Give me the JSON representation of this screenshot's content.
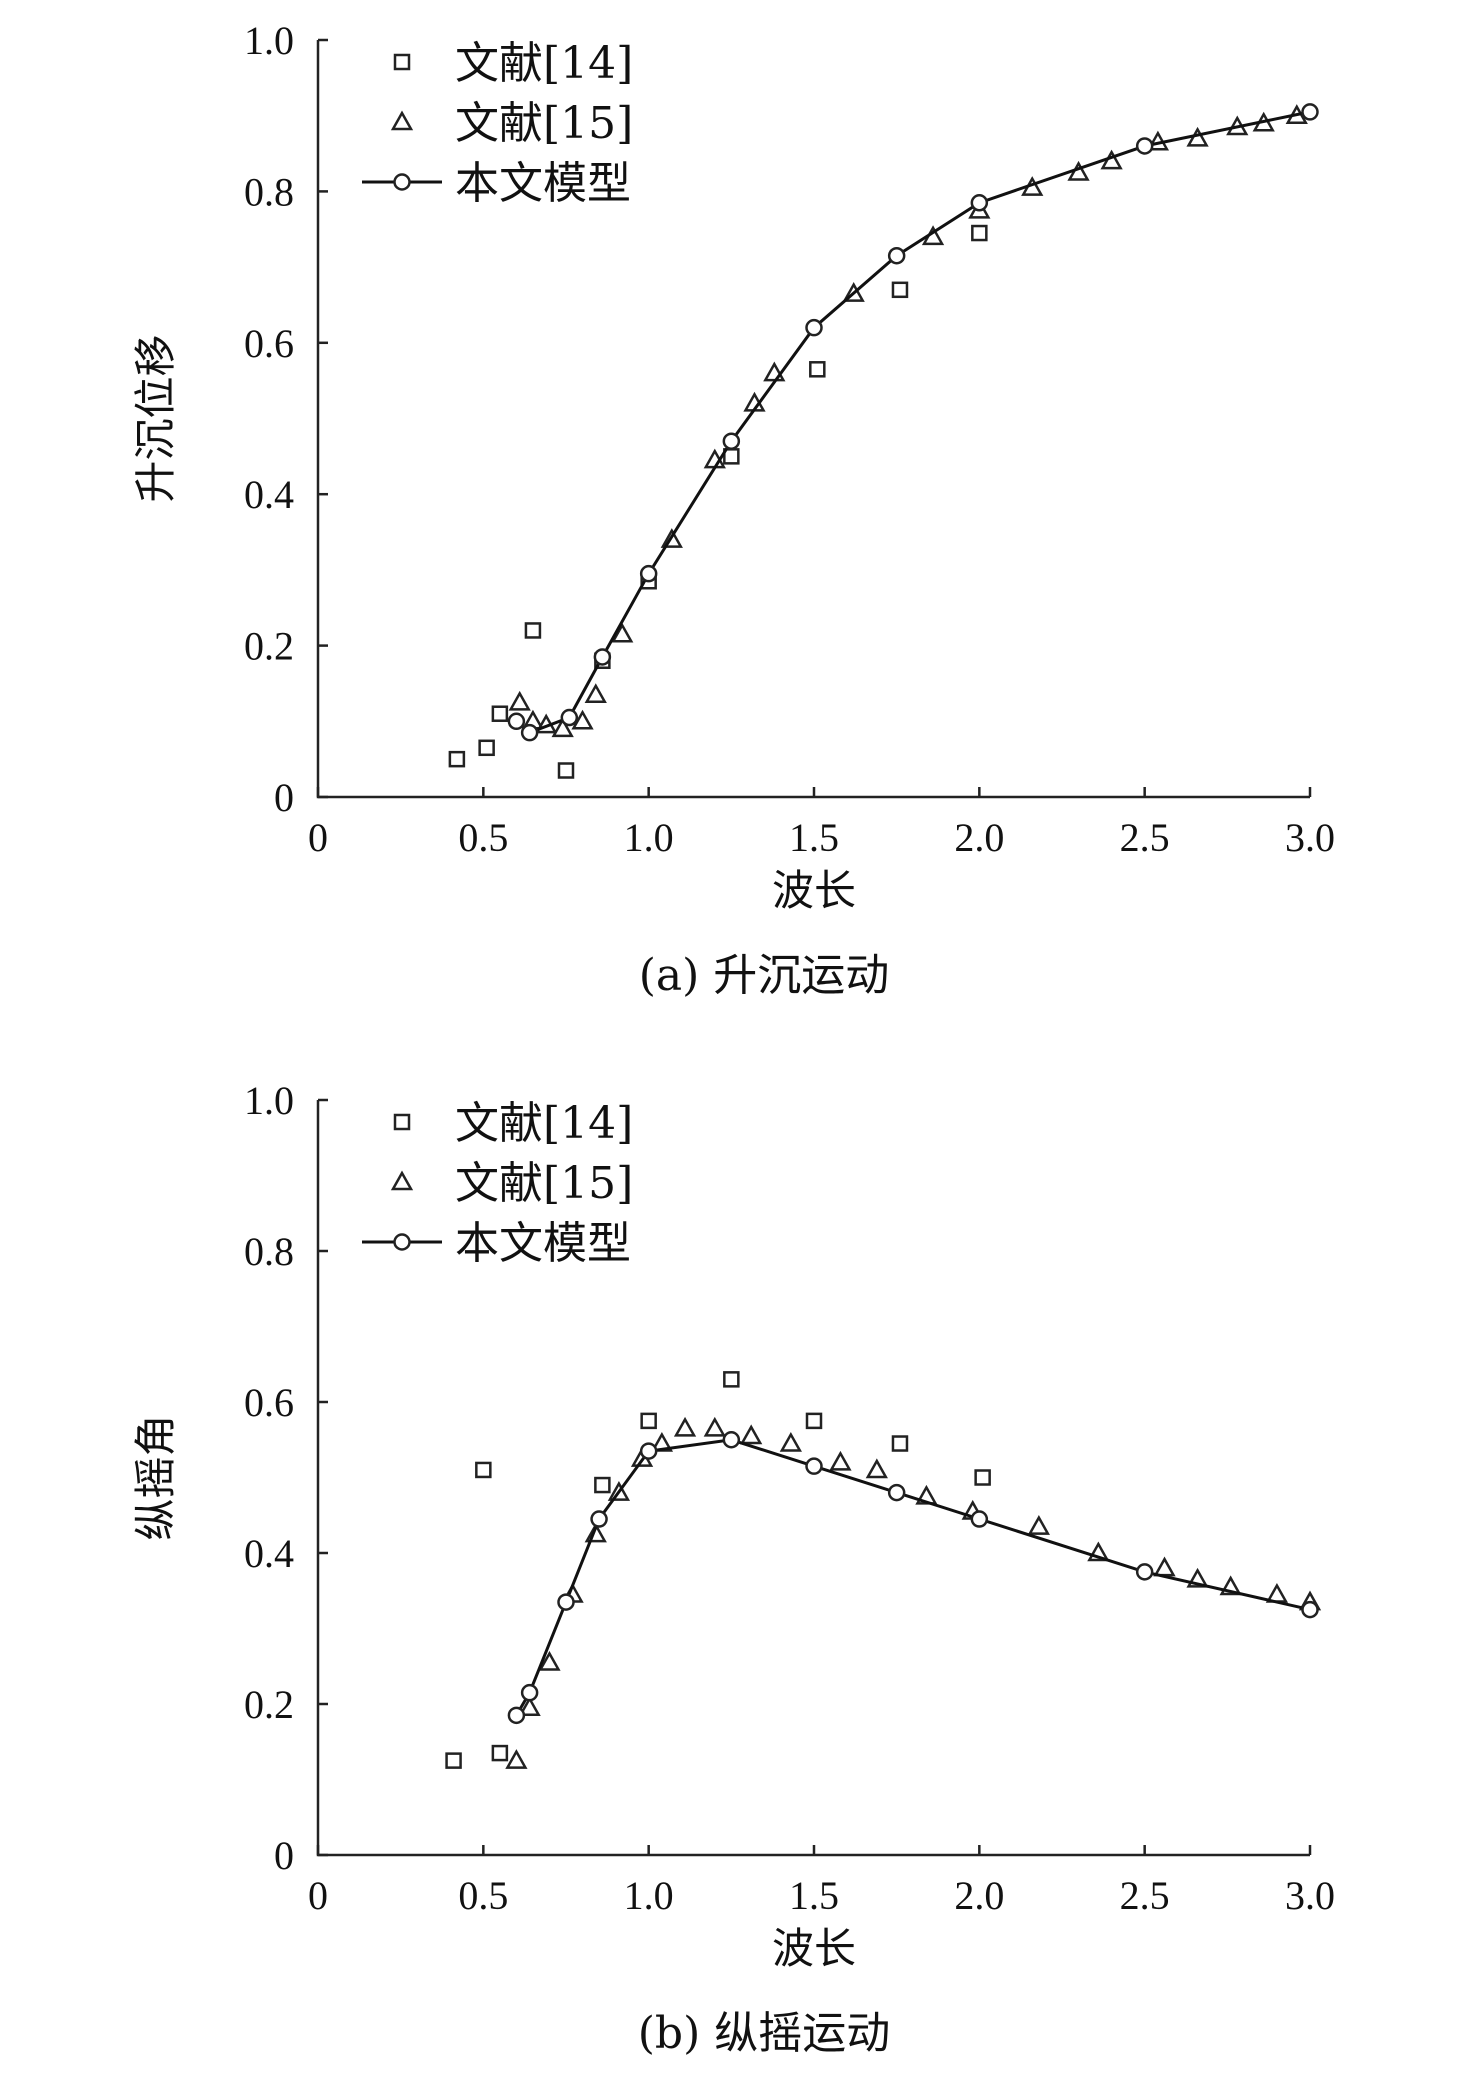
{
  "chart_data": [
    {
      "type": "scatter",
      "panel": "a",
      "caption": "(a) 升沉运动",
      "xlabel": "波长",
      "ylabel": "升沉位移",
      "xlim": [
        0,
        3.0
      ],
      "ylim": [
        0,
        1.0
      ],
      "xticks": [
        0,
        0.5,
        1.0,
        1.5,
        2.0,
        2.5,
        3.0
      ],
      "xtick_labels": [
        "0",
        "0.5",
        "1.0",
        "1.5",
        "2.0",
        "2.5",
        "3.0"
      ],
      "yticks": [
        0,
        0.2,
        0.4,
        0.6,
        0.8,
        1.0
      ],
      "ytick_labels": [
        "0",
        "0.2",
        "0.4",
        "0.6",
        "0.8",
        "1.0"
      ],
      "legend_position": "top-left",
      "series": [
        {
          "name": "文献[14]",
          "marker": "square",
          "x": [
            0.42,
            0.51,
            0.55,
            0.65,
            0.75,
            0.86,
            1.0,
            1.25,
            1.51,
            1.76,
            2.0
          ],
          "y": [
            0.05,
            0.065,
            0.11,
            0.22,
            0.035,
            0.18,
            0.285,
            0.45,
            0.565,
            0.67,
            0.745
          ]
        },
        {
          "name": "文献[15]",
          "marker": "triangle",
          "x": [
            0.61,
            0.65,
            0.69,
            0.74,
            0.8,
            0.84,
            0.92,
            1.07,
            1.2,
            1.32,
            1.38,
            1.62,
            1.86,
            2.0,
            2.16,
            2.3,
            2.4,
            2.54,
            2.66,
            2.78,
            2.86,
            2.96
          ],
          "y": [
            0.125,
            0.1,
            0.095,
            0.09,
            0.1,
            0.135,
            0.215,
            0.34,
            0.445,
            0.52,
            0.56,
            0.665,
            0.74,
            0.775,
            0.805,
            0.825,
            0.84,
            0.865,
            0.87,
            0.885,
            0.89,
            0.9
          ]
        },
        {
          "name": "本文模型",
          "marker": "circle",
          "line": true,
          "x": [
            0.6,
            0.64,
            0.76,
            0.86,
            1.0,
            1.25,
            1.5,
            1.75,
            2.0,
            2.5,
            3.0
          ],
          "y": [
            0.1,
            0.085,
            0.105,
            0.185,
            0.295,
            0.47,
            0.62,
            0.715,
            0.785,
            0.86,
            0.905
          ]
        }
      ]
    },
    {
      "type": "scatter",
      "panel": "b",
      "caption": "(b) 纵摇运动",
      "xlabel": "波长",
      "ylabel": "纵摇角",
      "xlim": [
        0,
        3.0
      ],
      "ylim": [
        0,
        1.0
      ],
      "xticks": [
        0,
        0.5,
        1.0,
        1.5,
        2.0,
        2.5,
        3.0
      ],
      "xtick_labels": [
        "0",
        "0.5",
        "1.0",
        "1.5",
        "2.0",
        "2.5",
        "3.0"
      ],
      "yticks": [
        0,
        0.2,
        0.4,
        0.6,
        0.8,
        1.0
      ],
      "ytick_labels": [
        "0",
        "0.2",
        "0.4",
        "0.6",
        "0.8",
        "1.0"
      ],
      "legend_position": "top-left",
      "series": [
        {
          "name": "文献[14]",
          "marker": "square",
          "x": [
            0.41,
            0.5,
            0.55,
            0.86,
            1.0,
            1.25,
            1.5,
            1.76,
            2.01
          ],
          "y": [
            0.125,
            0.51,
            0.135,
            0.49,
            0.575,
            0.63,
            0.575,
            0.545,
            0.5
          ]
        },
        {
          "name": "文献[15]",
          "marker": "triangle",
          "x": [
            0.6,
            0.64,
            0.7,
            0.77,
            0.84,
            0.91,
            0.98,
            1.04,
            1.11,
            1.2,
            1.31,
            1.43,
            1.58,
            1.69,
            1.84,
            1.98,
            2.18,
            2.36,
            2.56,
            2.66,
            2.76,
            2.9,
            3.0
          ],
          "y": [
            0.125,
            0.195,
            0.255,
            0.345,
            0.425,
            0.48,
            0.525,
            0.545,
            0.565,
            0.565,
            0.555,
            0.545,
            0.52,
            0.51,
            0.475,
            0.455,
            0.435,
            0.4,
            0.38,
            0.365,
            0.355,
            0.345,
            0.335
          ]
        },
        {
          "name": "本文模型",
          "marker": "circle",
          "line": true,
          "x": [
            0.6,
            0.64,
            0.75,
            0.85,
            1.0,
            1.25,
            1.5,
            1.75,
            2.0,
            2.5,
            3.0
          ],
          "y": [
            0.185,
            0.215,
            0.335,
            0.445,
            0.535,
            0.55,
            0.515,
            0.48,
            0.445,
            0.375,
            0.325
          ]
        }
      ]
    }
  ]
}
